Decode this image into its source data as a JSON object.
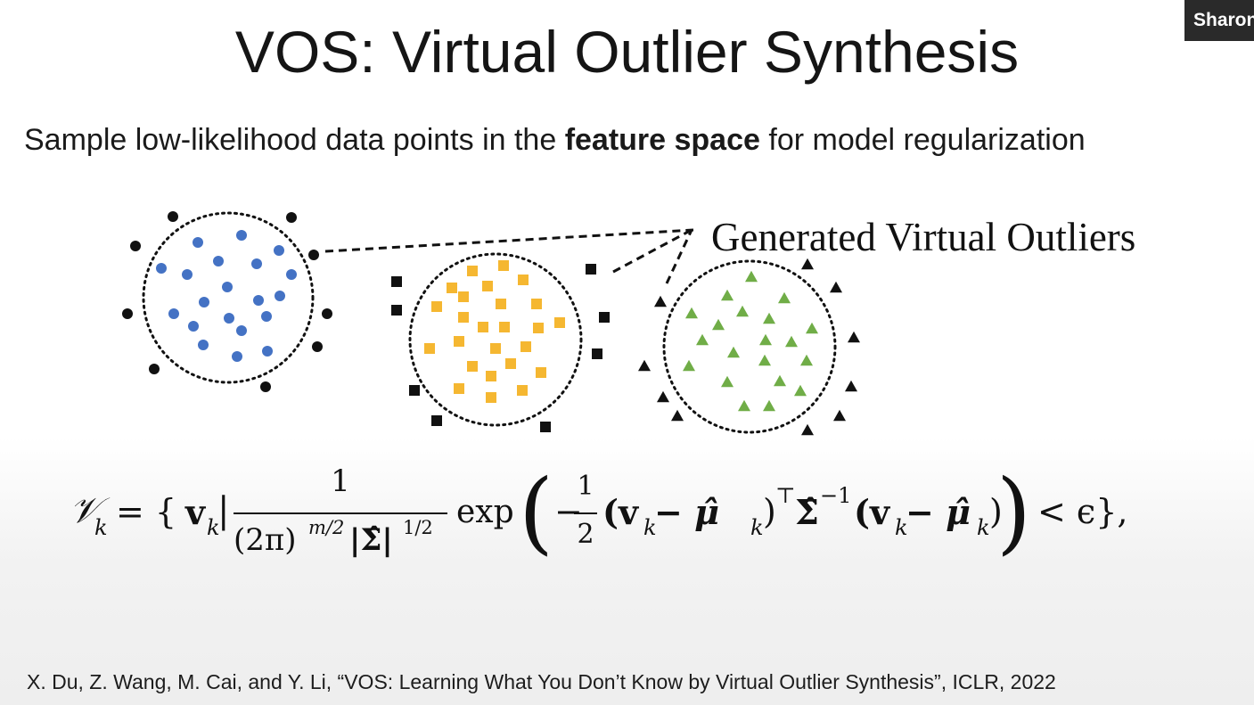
{
  "slide": {
    "title": "VOS: Virtual Outlier Synthesis",
    "subtitle_prefix": "Sample low-likelihood data points in the ",
    "subtitle_bold": "feature space",
    "subtitle_suffix": " for model regularization",
    "annotation": "Generated Virtual Outliers",
    "citation": "X. Du, Z. Wang, M. Cai, and Y. Li, “VOS: Learning What You Don’t Know by Virtual Outlier Synthesis”, ICLR, 2022"
  },
  "participant": {
    "name": "Sharon"
  },
  "formula": {
    "lhs": "𝒱",
    "lhs_sub": "k",
    "eq_open": "= {",
    "v": "v",
    "v_sub": "k",
    "bar": "|",
    "num_1": "1",
    "den_2pi": "(2π)",
    "den_exp1": "m/2",
    "den_sigma": "|Σ̂|",
    "den_exp2": "1/2",
    "exp": "exp",
    "big_open": "(",
    "minus": "−",
    "half_num": "1",
    "half_den": "2",
    "paren1": "(v",
    "paren1_sub": "k",
    "mu_minus": " − μ̂",
    "mu_sub": "k",
    "close_t": ")",
    "t_sup": "⊤",
    "sigma": "Σ̂",
    "sigma_sup": "−1",
    "paren2": "(v",
    "paren2_sub": "k",
    "mu2_minus": " − μ̂",
    "mu2_sub": "k",
    "close2": ")",
    "big_close": ")",
    "tail": "< ϵ},"
  },
  "colors": {
    "blue": "#4472c4",
    "orange": "#f5b731",
    "green": "#70ad47",
    "outlier": "#111111"
  }
}
